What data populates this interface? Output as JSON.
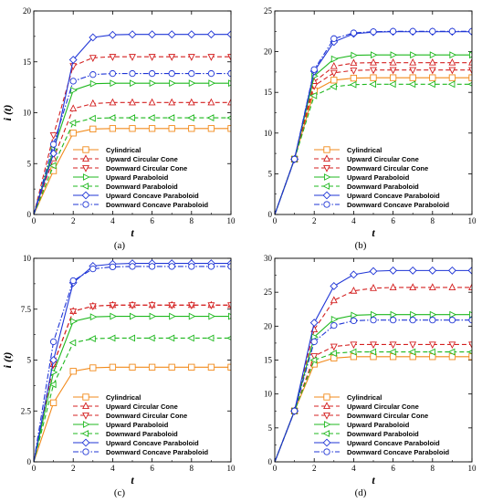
{
  "chart_data": [
    {
      "type": "line",
      "panel_label": "(a)",
      "xlabel": "t",
      "ylabel": "i (t)",
      "xlim": [
        0,
        10
      ],
      "ylim": [
        0,
        20
      ],
      "xticks": [
        "0",
        "2",
        "4",
        "6",
        "8",
        "10"
      ],
      "yticks": [
        "0",
        "5",
        "10",
        "15",
        "20"
      ],
      "legend_position": "bottom-right",
      "series": [
        {
          "name": "Cylindrical",
          "color": "#f28a1b",
          "dash": "solid",
          "marker": "square",
          "rise": 3.0,
          "x": [
            0,
            1,
            2,
            3,
            4,
            5,
            6,
            7,
            8,
            9,
            10
          ],
          "values": [
            0,
            4.3,
            8.0,
            8.4,
            8.45,
            8.45,
            8.45,
            8.45,
            8.45,
            8.45,
            8.45
          ]
        },
        {
          "name": "Upward Circular Cone",
          "color": "#d42020",
          "dash": "dash",
          "marker": "triangle-up",
          "rise": 3.0,
          "x": [
            0,
            1,
            2,
            3,
            4,
            5,
            6,
            7,
            8,
            9,
            10
          ],
          "values": [
            0,
            5.5,
            10.4,
            10.9,
            11.0,
            11.0,
            11.0,
            11.0,
            11.0,
            11.0,
            11.0
          ]
        },
        {
          "name": "Downward Circular Cone",
          "color": "#d42020",
          "dash": "dash",
          "marker": "triangle-down",
          "rise": 3.0,
          "x": [
            0,
            1,
            2,
            3,
            4,
            5,
            6,
            7,
            8,
            9,
            10
          ],
          "values": [
            0,
            7.8,
            14.6,
            15.4,
            15.5,
            15.5,
            15.5,
            15.5,
            15.5,
            15.5,
            15.5
          ]
        },
        {
          "name": "Upward Paraboloid",
          "color": "#1fb81f",
          "dash": "solid",
          "marker": "triangle-right",
          "rise": 3.0,
          "x": [
            0,
            1,
            2,
            3,
            4,
            5,
            6,
            7,
            8,
            9,
            10
          ],
          "values": [
            0,
            6.4,
            12.2,
            12.85,
            12.9,
            12.9,
            12.9,
            12.9,
            12.9,
            12.9,
            12.9
          ]
        },
        {
          "name": "Downward Paraboloid",
          "color": "#1fb81f",
          "dash": "dash",
          "marker": "triangle-left",
          "rise": 3.0,
          "x": [
            0,
            1,
            2,
            3,
            4,
            5,
            6,
            7,
            8,
            9,
            10
          ],
          "values": [
            0,
            4.8,
            9.0,
            9.45,
            9.5,
            9.5,
            9.5,
            9.5,
            9.5,
            9.5,
            9.5
          ]
        },
        {
          "name": "Upward Concave Paraboloid",
          "color": "#1f35d6",
          "dash": "solid",
          "marker": "diamond",
          "rise": 3.0,
          "x": [
            0,
            1,
            2,
            3,
            4,
            5,
            6,
            7,
            8,
            9,
            10
          ],
          "values": [
            0,
            6.0,
            15.2,
            17.4,
            17.65,
            17.7,
            17.7,
            17.7,
            17.7,
            17.7,
            17.7
          ]
        },
        {
          "name": "Downward Concave Paraboloid",
          "color": "#1f35d6",
          "dash": "dashdot",
          "marker": "circle",
          "rise": 3.0,
          "x": [
            0,
            1,
            2,
            3,
            4,
            5,
            6,
            7,
            8,
            9,
            10
          ],
          "values": [
            0,
            6.9,
            13.1,
            13.75,
            13.85,
            13.85,
            13.85,
            13.85,
            13.85,
            13.85,
            13.85
          ]
        }
      ]
    },
    {
      "type": "line",
      "panel_label": "(b)",
      "xlabel": "t",
      "ylabel": "",
      "xlim": [
        0,
        10
      ],
      "ylim": [
        0,
        25
      ],
      "xticks": [
        "0",
        "2",
        "4",
        "6",
        "8",
        "10"
      ],
      "yticks": [
        "0",
        "5",
        "10",
        "15",
        "20",
        "25"
      ],
      "legend_position": "bottom-right",
      "series": [
        {
          "name": "Cylindrical",
          "color": "#f28a1b",
          "dash": "solid",
          "marker": "square",
          "rise": 3.0,
          "x": [
            0,
            1,
            2,
            3,
            4,
            5,
            6,
            7,
            8,
            9,
            10
          ],
          "values": [
            0,
            6.8,
            15.2,
            16.5,
            16.75,
            16.8,
            16.8,
            16.8,
            16.8,
            16.8,
            16.8
          ]
        },
        {
          "name": "Upward Circular Cone",
          "color": "#d42020",
          "dash": "dash",
          "marker": "triangle-up",
          "rise": 3.0,
          "x": [
            0,
            1,
            2,
            3,
            4,
            5,
            6,
            7,
            8,
            9,
            10
          ],
          "values": [
            0,
            6.8,
            16.3,
            18.2,
            18.6,
            18.65,
            18.65,
            18.65,
            18.65,
            18.65,
            18.65
          ]
        },
        {
          "name": "Downward Circular Cone",
          "color": "#d42020",
          "dash": "dash",
          "marker": "triangle-down",
          "rise": 3.0,
          "x": [
            0,
            1,
            2,
            3,
            4,
            5,
            6,
            7,
            8,
            9,
            10
          ],
          "values": [
            0,
            6.8,
            15.8,
            17.4,
            17.7,
            17.75,
            17.75,
            17.75,
            17.75,
            17.75,
            17.75
          ]
        },
        {
          "name": "Upward Paraboloid",
          "color": "#1fb81f",
          "dash": "solid",
          "marker": "triangle-right",
          "rise": 3.0,
          "x": [
            0,
            1,
            2,
            3,
            4,
            5,
            6,
            7,
            8,
            9,
            10
          ],
          "values": [
            0,
            6.8,
            17.0,
            19.1,
            19.55,
            19.6,
            19.6,
            19.6,
            19.6,
            19.6,
            19.6
          ]
        },
        {
          "name": "Downward Paraboloid",
          "color": "#1fb81f",
          "dash": "dash",
          "marker": "triangle-left",
          "rise": 3.0,
          "x": [
            0,
            1,
            2,
            3,
            4,
            5,
            6,
            7,
            8,
            9,
            10
          ],
          "values": [
            0,
            6.8,
            14.6,
            15.7,
            15.95,
            16.0,
            16.0,
            16.0,
            16.0,
            16.0,
            16.0
          ]
        },
        {
          "name": "Upward Concave Paraboloid",
          "color": "#1f35d6",
          "dash": "solid",
          "marker": "diamond",
          "rise": 3.0,
          "x": [
            0,
            1,
            2,
            3,
            4,
            5,
            6,
            7,
            8,
            9,
            10
          ],
          "values": [
            0,
            6.8,
            17.6,
            21.2,
            22.2,
            22.4,
            22.45,
            22.45,
            22.45,
            22.45,
            22.45
          ]
        },
        {
          "name": "Downward Concave Paraboloid",
          "color": "#1f35d6",
          "dash": "dashdot",
          "marker": "circle",
          "rise": 3.0,
          "x": [
            0,
            1,
            2,
            3,
            4,
            5,
            6,
            7,
            8,
            9,
            10
          ],
          "values": [
            0,
            6.8,
            17.8,
            21.6,
            22.3,
            22.45,
            22.5,
            22.5,
            22.5,
            22.5,
            22.5
          ]
        }
      ]
    },
    {
      "type": "line",
      "panel_label": "(c)",
      "xlabel": "t",
      "ylabel": "i (t)",
      "xlim": [
        0,
        10
      ],
      "ylim": [
        0,
        10
      ],
      "xticks": [
        "0",
        "2",
        "4",
        "6",
        "8",
        "10"
      ],
      "yticks": [
        "0",
        "2.5",
        "5",
        "7.5",
        "10"
      ],
      "legend_position": "bottom-right",
      "series": [
        {
          "name": "Cylindrical",
          "color": "#f28a1b",
          "dash": "solid",
          "marker": "square",
          "rise": 3.0,
          "x": [
            0,
            1,
            2,
            3,
            4,
            5,
            6,
            7,
            8,
            9,
            10
          ],
          "values": [
            0,
            2.9,
            4.45,
            4.62,
            4.65,
            4.65,
            4.65,
            4.65,
            4.65,
            4.65,
            4.65
          ]
        },
        {
          "name": "Upward Circular Cone",
          "color": "#d42020",
          "dash": "dash",
          "marker": "triangle-up",
          "rise": 3.0,
          "x": [
            0,
            1,
            2,
            3,
            4,
            5,
            6,
            7,
            8,
            9,
            10
          ],
          "values": [
            0,
            4.8,
            7.4,
            7.65,
            7.7,
            7.7,
            7.7,
            7.7,
            7.7,
            7.7,
            7.7
          ]
        },
        {
          "name": "Downward Circular Cone",
          "color": "#d42020",
          "dash": "dash",
          "marker": "triangle-down",
          "rise": 3.0,
          "x": [
            0,
            1,
            2,
            3,
            4,
            5,
            6,
            7,
            8,
            9,
            10
          ],
          "values": [
            0,
            4.8,
            7.4,
            7.65,
            7.7,
            7.7,
            7.7,
            7.7,
            7.7,
            7.7,
            7.7
          ]
        },
        {
          "name": "Upward Paraboloid",
          "color": "#1fb81f",
          "dash": "solid",
          "marker": "triangle-right",
          "rise": 3.0,
          "x": [
            0,
            1,
            2,
            3,
            4,
            5,
            6,
            7,
            8,
            9,
            10
          ],
          "values": [
            0,
            4.4,
            6.9,
            7.12,
            7.15,
            7.15,
            7.15,
            7.15,
            7.15,
            7.15,
            7.15
          ]
        },
        {
          "name": "Downward Paraboloid",
          "color": "#1fb81f",
          "dash": "dash",
          "marker": "triangle-left",
          "rise": 3.0,
          "x": [
            0,
            1,
            2,
            3,
            4,
            5,
            6,
            7,
            8,
            9,
            10
          ],
          "values": [
            0,
            3.8,
            5.85,
            6.05,
            6.08,
            6.08,
            6.08,
            6.08,
            6.08,
            6.08,
            6.08
          ]
        },
        {
          "name": "Upward Concave Paraboloid",
          "color": "#1f35d6",
          "dash": "solid",
          "marker": "diamond",
          "rise": 3.0,
          "x": [
            0,
            1,
            2,
            3,
            4,
            5,
            6,
            7,
            8,
            9,
            10
          ],
          "values": [
            0,
            5.0,
            8.8,
            9.62,
            9.72,
            9.75,
            9.75,
            9.75,
            9.75,
            9.75,
            9.75
          ]
        },
        {
          "name": "Downward Concave Paraboloid",
          "color": "#1f35d6",
          "dash": "dashdot",
          "marker": "circle",
          "rise": 3.0,
          "x": [
            0,
            1,
            2,
            3,
            4,
            5,
            6,
            7,
            8,
            9,
            10
          ],
          "values": [
            0,
            5.9,
            8.9,
            9.48,
            9.58,
            9.6,
            9.6,
            9.6,
            9.6,
            9.6,
            9.6
          ]
        }
      ]
    },
    {
      "type": "line",
      "panel_label": "(d)",
      "xlabel": "t",
      "ylabel": "",
      "xlim": [
        0,
        10
      ],
      "ylim": [
        0,
        30
      ],
      "xticks": [
        "0",
        "2",
        "4",
        "6",
        "8",
        "10"
      ],
      "yticks": [
        "0",
        "5",
        "10",
        "15",
        "20",
        "25",
        "30"
      ],
      "legend_position": "bottom-right",
      "series": [
        {
          "name": "Cylindrical",
          "color": "#f28a1b",
          "dash": "solid",
          "marker": "square",
          "rise": 3.0,
          "x": [
            0,
            1,
            2,
            3,
            4,
            5,
            6,
            7,
            8,
            9,
            10
          ],
          "values": [
            0,
            7.5,
            14.4,
            15.3,
            15.5,
            15.5,
            15.5,
            15.5,
            15.5,
            15.5,
            15.5
          ]
        },
        {
          "name": "Upward Circular Cone",
          "color": "#d42020",
          "dash": "dash",
          "marker": "triangle-up",
          "rise": 3.0,
          "x": [
            0,
            1,
            2,
            3,
            4,
            5,
            6,
            7,
            8,
            9,
            10
          ],
          "values": [
            0,
            7.5,
            19.5,
            23.8,
            25.2,
            25.6,
            25.7,
            25.7,
            25.7,
            25.7,
            25.7
          ]
        },
        {
          "name": "Downward Circular Cone",
          "color": "#d42020",
          "dash": "dash",
          "marker": "triangle-down",
          "rise": 3.0,
          "x": [
            0,
            1,
            2,
            3,
            4,
            5,
            6,
            7,
            8,
            9,
            10
          ],
          "values": [
            0,
            7.5,
            15.6,
            17.0,
            17.3,
            17.3,
            17.3,
            17.3,
            17.3,
            17.3,
            17.3
          ]
        },
        {
          "name": "Upward Paraboloid",
          "color": "#1fb81f",
          "dash": "solid",
          "marker": "triangle-right",
          "rise": 3.0,
          "x": [
            0,
            1,
            2,
            3,
            4,
            5,
            6,
            7,
            8,
            9,
            10
          ],
          "values": [
            0,
            7.5,
            18.4,
            21.0,
            21.6,
            21.7,
            21.7,
            21.7,
            21.7,
            21.7,
            21.7
          ]
        },
        {
          "name": "Downward Paraboloid",
          "color": "#1fb81f",
          "dash": "dash",
          "marker": "triangle-left",
          "rise": 3.0,
          "x": [
            0,
            1,
            2,
            3,
            4,
            5,
            6,
            7,
            8,
            9,
            10
          ],
          "values": [
            0,
            7.5,
            15.0,
            16.0,
            16.2,
            16.2,
            16.2,
            16.2,
            16.2,
            16.2,
            16.2
          ]
        },
        {
          "name": "Upward Concave Paraboloid",
          "color": "#1f35d6",
          "dash": "solid",
          "marker": "diamond",
          "rise": 3.0,
          "x": [
            0,
            1,
            2,
            3,
            4,
            5,
            6,
            7,
            8,
            9,
            10
          ],
          "values": [
            0,
            7.5,
            20.5,
            25.9,
            27.6,
            28.1,
            28.2,
            28.2,
            28.2,
            28.2,
            28.2
          ]
        },
        {
          "name": "Downward Concave Paraboloid",
          "color": "#1f35d6",
          "dash": "dashdot",
          "marker": "circle",
          "rise": 3.0,
          "x": [
            0,
            1,
            2,
            3,
            4,
            5,
            6,
            7,
            8,
            9,
            10
          ],
          "values": [
            0,
            7.5,
            17.7,
            20.1,
            20.8,
            20.9,
            20.9,
            20.9,
            20.9,
            20.9,
            20.9
          ]
        }
      ]
    }
  ]
}
